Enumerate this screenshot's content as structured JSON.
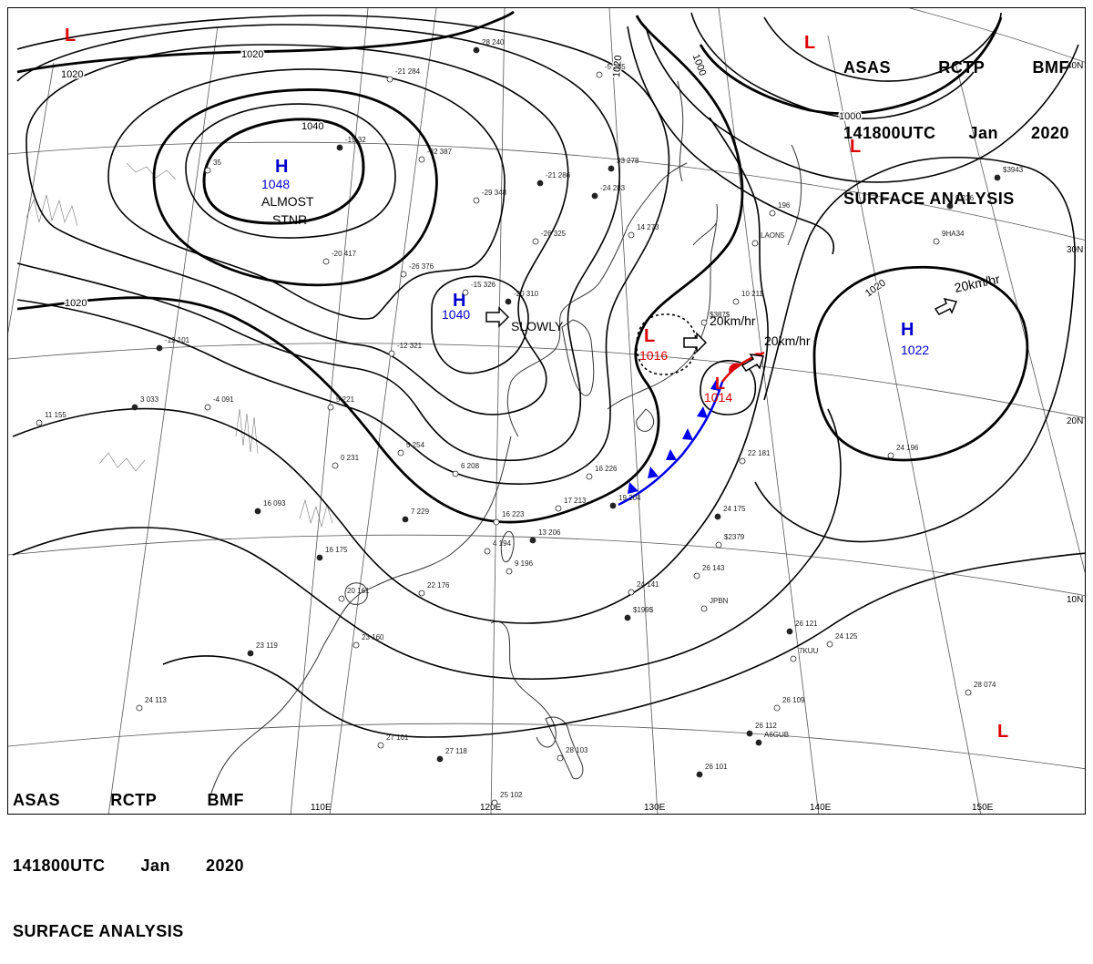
{
  "header": {
    "agency": "ASAS",
    "station": "RCTP",
    "office": "BMF",
    "datetime": "141800UTC",
    "month": "Jan",
    "year": "2020",
    "product": "SURFACE ANALYSIS"
  },
  "colors": {
    "isobar": "#000000",
    "high": "#0000cc",
    "low": "#dd0000",
    "cold_front": "#0000ee",
    "warm_front": "#dd0000",
    "grid": "#555555",
    "coast": "#333333"
  },
  "isobar_labels": [
    "1020",
    "1020",
    "1040",
    "1020",
    "1000",
    "1000",
    "1020",
    "1020"
  ],
  "pressure_centers": [
    {
      "type": "H",
      "value": "1048",
      "color": "#0000cc"
    },
    {
      "type": "H",
      "value": "1040",
      "color": "#0000cc"
    },
    {
      "type": "H",
      "value": "1022",
      "color": "#0000cc"
    },
    {
      "type": "L",
      "value": "1016",
      "color": "#dd0000"
    },
    {
      "type": "L",
      "value": "1014",
      "color": "#dd0000"
    },
    {
      "type": "L",
      "value": "",
      "color": "#dd0000"
    },
    {
      "type": "L",
      "value": "",
      "color": "#dd0000"
    },
    {
      "type": "L",
      "value": "",
      "color": "#dd0000"
    },
    {
      "type": "L",
      "value": "",
      "color": "#dd0000"
    }
  ],
  "annotations": {
    "almost_stnr_1": "ALMOST",
    "almost_stnr_2": "STNR",
    "slowly": "SLOWLY",
    "motion_low1": "20km/hr",
    "motion_low2": "20km/hr",
    "motion_high": "20km/hr"
  },
  "lon_labels": [
    "110E",
    "120E",
    "130E",
    "140E",
    "150E"
  ],
  "lat_labels": [
    "40N",
    "30N",
    "20N",
    "10N"
  ],
  "station_texts": [
    "28  240",
    "-21 284",
    "-32 387",
    "-21 286",
    "-29 348",
    "-26 325",
    "-24 283",
    "14 273",
    "-15 326",
    "-20 310",
    "-26 376",
    "-20 417",
    "-19 32",
    "35",
    "-12 321",
    "-12 101",
    "5 221",
    "-4 091",
    "3 033",
    "11 155",
    "0 231",
    "16 093",
    "5 254",
    "6 208",
    "7 229",
    "16 223",
    "4 194",
    "13 206",
    "9 196",
    "22 176",
    "16 175",
    "20 161",
    "23 160",
    "23 119",
    "24 113",
    "27 101",
    "27 118",
    "25 102",
    "28 103",
    "26 101",
    "24 141",
    "26 143",
    "24 175",
    "22 181",
    "24 196",
    "26 121",
    "24 125",
    "26 109",
    "26 112",
    "28 074",
    "17 213",
    "19 204",
    "16 226",
    "10 211",
    "9 236",
    "196",
    "-5 285",
    "33 278",
    "LAON5",
    "9HA34",
    "$3943",
    "$387$",
    "$2379",
    "$199$",
    "JPBN",
    "7KUU",
    "A6GUB"
  ]
}
